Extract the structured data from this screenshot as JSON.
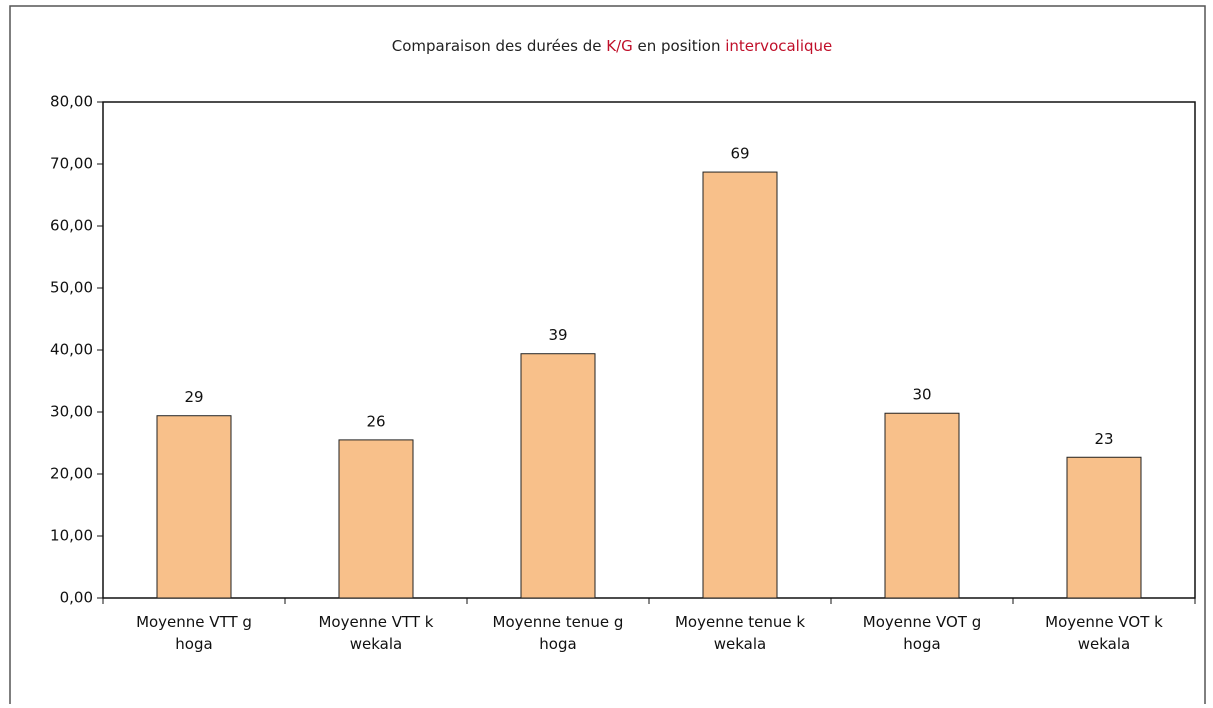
{
  "chart_data": {
    "type": "bar",
    "title": [
      {
        "text": "Comparaison des durées de ",
        "color": "#222222"
      },
      {
        "text": "K/G",
        "color": "#c0102a"
      },
      {
        "text": " en position ",
        "color": "#222222"
      },
      {
        "text": "intervocalique",
        "color": "#c0102a"
      }
    ],
    "categories": [
      "Moyenne VTT g hoga",
      "Moyenne VTT k wekala",
      "Moyenne tenue g hoga",
      "Moyenne tenue k wekala",
      "Moyenne VOT g hoga",
      "Moyenne VOT k wekala"
    ],
    "values": [
      29.4,
      25.5,
      39.4,
      68.7,
      29.8,
      22.7
    ],
    "value_labels": [
      "29",
      "26",
      "39",
      "69",
      "30",
      "23"
    ],
    "color": "#f8c08a",
    "ylim": [
      0,
      80
    ],
    "yticks": [
      {
        "value": 0,
        "label": "0,00"
      },
      {
        "value": 10,
        "label": "10,00"
      },
      {
        "value": 20,
        "label": "20,00"
      },
      {
        "value": 30,
        "label": "30,00"
      },
      {
        "value": 40,
        "label": "40,00"
      },
      {
        "value": 50,
        "label": "50,00"
      },
      {
        "value": 60,
        "label": "60,00"
      },
      {
        "value": 70,
        "label": "70,00"
      },
      {
        "value": 80,
        "label": "80,00"
      }
    ]
  }
}
